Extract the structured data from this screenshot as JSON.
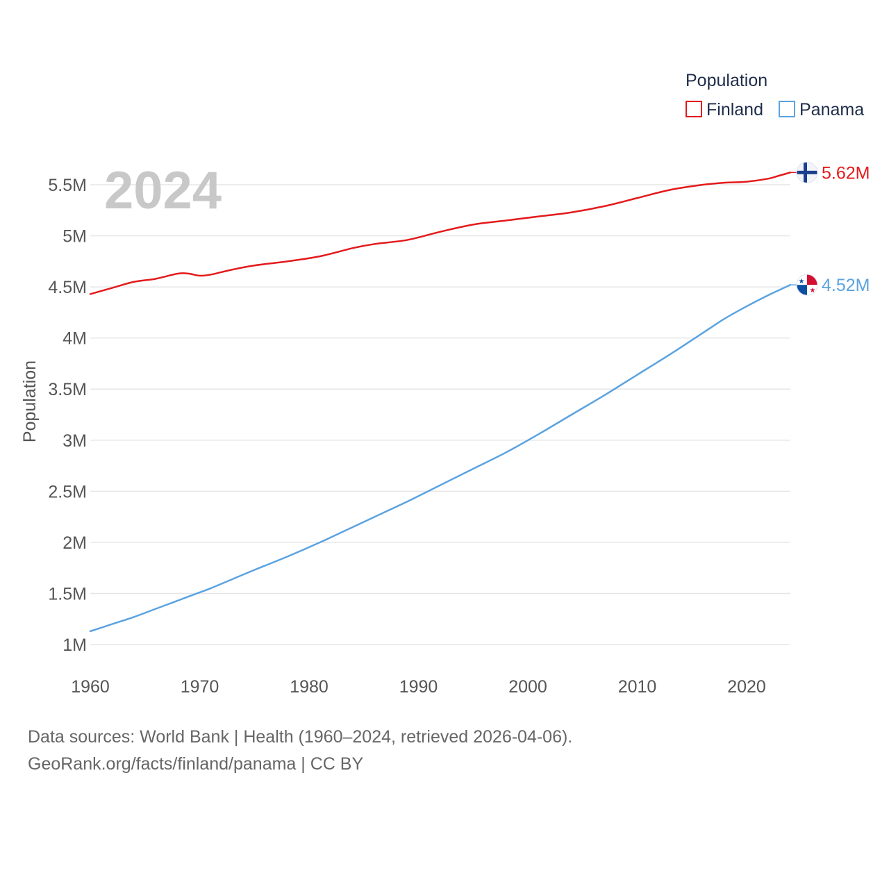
{
  "chart_data": {
    "type": "line",
    "title": "",
    "year_label": "2024",
    "xlabel": "",
    "ylabel": "Population",
    "xlim": [
      1960,
      2024
    ],
    "ylim": [
      1000000,
      5620000
    ],
    "x_ticks": [
      1960,
      1970,
      1980,
      1990,
      2000,
      2010,
      2020
    ],
    "x_tick_labels": [
      "1960",
      "1970",
      "1980",
      "1990",
      "2000",
      "2010",
      "2020"
    ],
    "y_ticks": [
      1000000,
      1500000,
      2000000,
      2500000,
      3000000,
      3500000,
      4000000,
      4500000,
      5000000,
      5500000
    ],
    "y_tick_labels": [
      "1M",
      "1.5M",
      "2M",
      "2.5M",
      "3M",
      "3.5M",
      "4M",
      "4.5M",
      "5M",
      "5.5M"
    ],
    "legend": {
      "title": "Population",
      "placement": "top-right",
      "entries": [
        "Finland",
        "Panama"
      ]
    },
    "x": [
      1960,
      1962,
      1964,
      1966,
      1968,
      1969,
      1970,
      1971,
      1973,
      1975,
      1978,
      1981,
      1984,
      1986,
      1989,
      1992,
      1995,
      1998,
      2001,
      2004,
      2007,
      2010,
      2013,
      2016,
      2018,
      2020,
      2022,
      2023,
      2024
    ],
    "series": [
      {
        "name": "Finland",
        "color": "#e31a1c",
        "end_label": "5.62M",
        "flag": "finland-flag",
        "values": [
          4430000,
          4490000,
          4550000,
          4580000,
          4630000,
          4630000,
          4610000,
          4620000,
          4670000,
          4710000,
          4750000,
          4800000,
          4880000,
          4920000,
          4960000,
          5040000,
          5110000,
          5150000,
          5190000,
          5230000,
          5290000,
          5370000,
          5450000,
          5500000,
          5520000,
          5530000,
          5560000,
          5590000,
          5620000
        ]
      },
      {
        "name": "Panama",
        "color": "#5ba3e0",
        "end_label": "4.52M",
        "flag": "panama-flag",
        "values": [
          1130000,
          1200000,
          1270000,
          1350000,
          1430000,
          1470000,
          1510000,
          1550000,
          1640000,
          1730000,
          1860000,
          2000000,
          2150000,
          2250000,
          2400000,
          2560000,
          2720000,
          2880000,
          3060000,
          3250000,
          3440000,
          3640000,
          3840000,
          4050000,
          4190000,
          4310000,
          4420000,
          4470000,
          4520000
        ]
      }
    ]
  },
  "footer": {
    "line1": "Data sources: World Bank | Health (1960–2024, retrieved 2026-04-06).",
    "line2": "GeoRank.org/facts/finland/panama | CC BY"
  }
}
